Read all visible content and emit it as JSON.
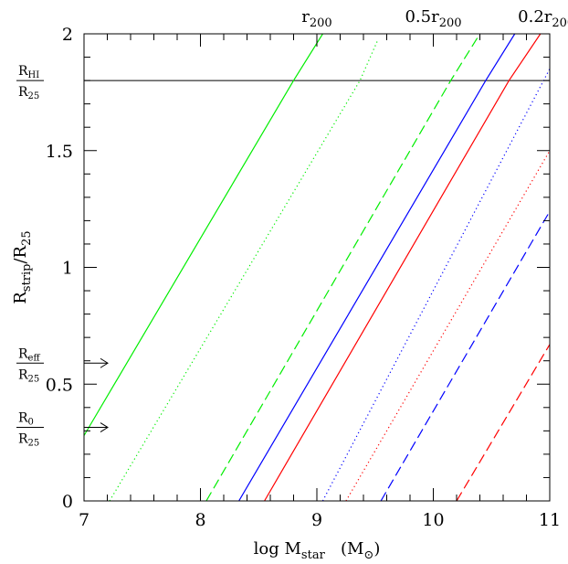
{
  "chart_data": {
    "type": "line",
    "xlabel": {
      "main": "log M",
      "sub": "star",
      "unit_open": "(M",
      "unit_sub": "⊙",
      "unit_close": ")"
    },
    "ylabel": {
      "main": "R",
      "sub": "strip",
      "mid": "/R",
      "sub2": "25"
    },
    "xlim": [
      7,
      11
    ],
    "ylim": [
      0,
      2
    ],
    "xticks": [
      7,
      8,
      9,
      10,
      11
    ],
    "xtick_labels": [
      "7",
      "8",
      "9",
      "10",
      "11"
    ],
    "yticks": [
      0,
      0.5,
      1,
      1.5,
      2
    ],
    "ytick_labels": [
      "0",
      "0.5",
      "1",
      "1.5",
      "2"
    ],
    "grid": false,
    "top_labels": [
      {
        "main": "r",
        "sub": "200",
        "x": 9.0
      },
      {
        "main": "0.5r",
        "sub": "200",
        "x": 10.0
      },
      {
        "main": "0.2r",
        "sub": "200",
        "x": 10.97
      }
    ],
    "hline": {
      "y": 1.8,
      "color": "#000000"
    },
    "ratio_labels": [
      {
        "num": "R",
        "num_sub": "HI",
        "den": "R",
        "den_sub": "25",
        "y": 1.8,
        "arrow": false
      },
      {
        "num": "R",
        "num_sub": "eff",
        "den": "R",
        "den_sub": "25",
        "y": 0.59,
        "arrow": true
      },
      {
        "num": "R",
        "num_sub": "0",
        "den": "R",
        "den_sub": "25",
        "y": 0.315,
        "arrow": true
      }
    ],
    "series": [
      {
        "color": "#00ee00",
        "dash": "solid",
        "x": [
          7.0,
          8.8,
          9.05
        ],
        "y": [
          0.28,
          1.8,
          2.0
        ]
      },
      {
        "color": "#00ee00",
        "dash": "dotted",
        "x": [
          7.22,
          9.37,
          9.52
        ],
        "y": [
          0.0,
          1.8,
          1.97
        ]
      },
      {
        "color": "#00ee00",
        "dash": "dashed",
        "x": [
          8.05,
          10.15,
          10.4
        ],
        "y": [
          0.0,
          1.8,
          2.0
        ]
      },
      {
        "color": "#0000ff",
        "dash": "solid",
        "x": [
          8.33,
          10.45,
          10.7
        ],
        "y": [
          0.0,
          1.8,
          2.0
        ]
      },
      {
        "color": "#ff0000",
        "dash": "solid",
        "x": [
          8.55,
          10.65,
          10.92
        ],
        "y": [
          0.0,
          1.8,
          2.0
        ]
      },
      {
        "color": "#0000ff",
        "dash": "dotted",
        "x": [
          9.05,
          11.0
        ],
        "y": [
          0.0,
          1.85
        ]
      },
      {
        "color": "#ff0000",
        "dash": "dotted",
        "x": [
          9.25,
          11.0
        ],
        "y": [
          0.0,
          1.5
        ]
      },
      {
        "color": "#0000ff",
        "dash": "dashed",
        "x": [
          9.55,
          11.0
        ],
        "y": [
          0.0,
          1.24
        ]
      },
      {
        "color": "#ff0000",
        "dash": "dashed",
        "x": [
          10.2,
          11.0
        ],
        "y": [
          0.0,
          0.67
        ]
      }
    ]
  }
}
